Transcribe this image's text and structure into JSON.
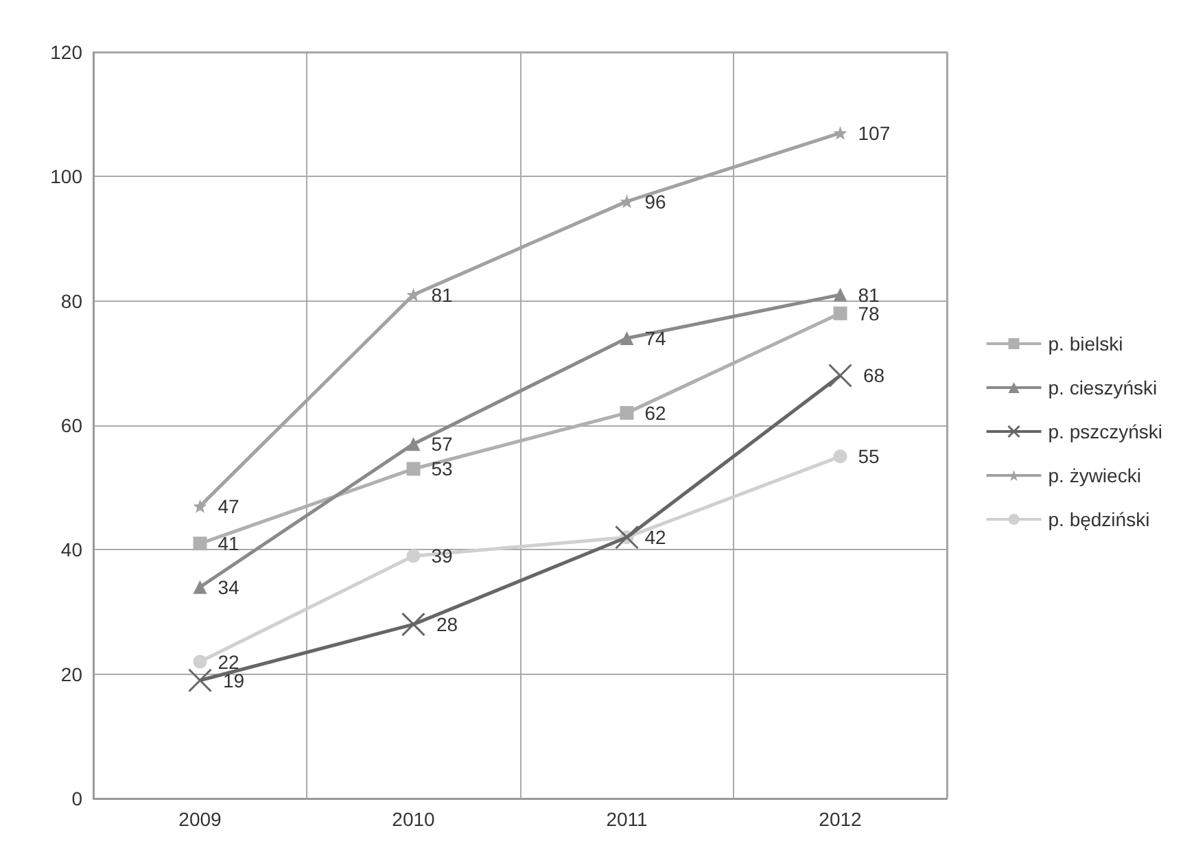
{
  "chart_data": {
    "type": "line",
    "categories": [
      "2009",
      "2010",
      "2011",
      "2012"
    ],
    "ylim": [
      0,
      120
    ],
    "yticks": [
      0,
      20,
      40,
      60,
      80,
      100,
      120
    ],
    "grid": true,
    "legend": "right",
    "series": [
      {
        "name": "p. bielski",
        "color": "#b0b0b0",
        "marker": "square",
        "values": [
          41,
          53,
          62,
          78
        ],
        "value_labels": [
          "41",
          "53",
          "62",
          "78"
        ]
      },
      {
        "name": "p. cieszyński",
        "color": "#8a8a8a",
        "marker": "triangle",
        "values": [
          34,
          57,
          74,
          81
        ],
        "value_labels": [
          "34",
          "57",
          "74",
          "81"
        ]
      },
      {
        "name": "p. pszczyński",
        "color": "#666666",
        "marker": "cross",
        "values": [
          19,
          28,
          42,
          68
        ],
        "value_labels": [
          "19",
          "28",
          null,
          "68"
        ]
      },
      {
        "name": "p. żywiecki",
        "color": "#a2a2a2",
        "marker": "star",
        "values": [
          47,
          81,
          96,
          107
        ],
        "value_labels": [
          "47",
          "81",
          "96",
          "107"
        ]
      },
      {
        "name": "p. będziński",
        "color": "#d0d0d0",
        "marker": "circle",
        "values": [
          22,
          39,
          42,
          55
        ],
        "value_labels": [
          "22",
          "39",
          "42",
          "55"
        ]
      }
    ]
  }
}
